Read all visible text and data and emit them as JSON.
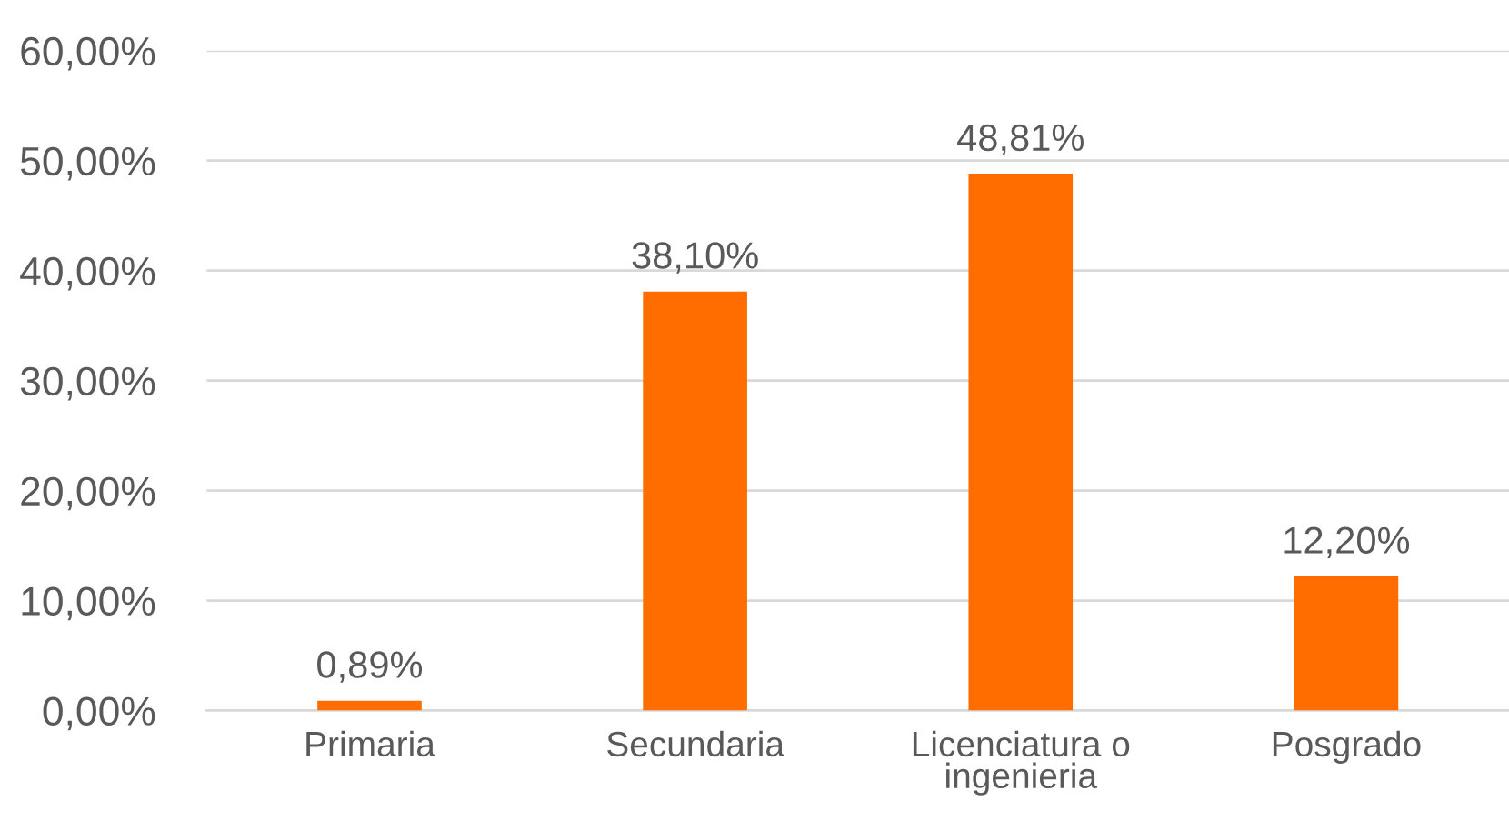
{
  "chart_data": {
    "type": "bar",
    "categories": [
      "Primaria",
      "Secundaria",
      "Licenciatura o\ningenieria",
      "Posgrado"
    ],
    "values": [
      0.89,
      38.1,
      48.81,
      12.2
    ],
    "color": "#ff6d00",
    "value_labels": [
      "0,89%",
      "38,10%",
      "48,81%",
      "12,20%"
    ],
    "ylim": [
      0,
      60
    ],
    "yticks": [
      {
        "value": 0,
        "label": "0,00%"
      },
      {
        "value": 10,
        "label": "10,00%"
      },
      {
        "value": 20,
        "label": "20,00%"
      },
      {
        "value": 30,
        "label": "30,00%"
      },
      {
        "value": 40,
        "label": "40,00%"
      },
      {
        "value": 50,
        "label": "50,00%"
      },
      {
        "value": 60,
        "label": "60,00%"
      }
    ],
    "grid": "y",
    "legend": false
  }
}
